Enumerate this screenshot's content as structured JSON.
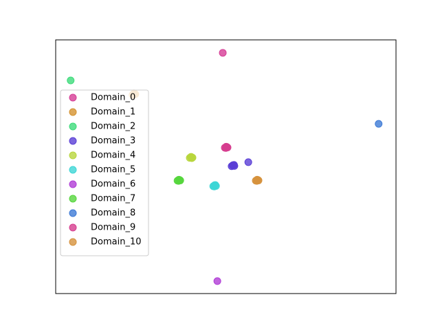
{
  "chart_data": {
    "type": "scatter",
    "xlim": [
      0,
      100
    ],
    "ylim": [
      0,
      100
    ],
    "legend": "center left",
    "series": [
      {
        "name": "Domain_0",
        "color": "#d63d96",
        "x": [
          49.1
        ],
        "y": [
          94.9
        ]
      },
      {
        "name": "Domain_1",
        "color": "#d4922f",
        "x": [
          22.6,
          23.0,
          23.4,
          22.9,
          23.2
        ],
        "y": [
          78.3,
          78.9,
          78.6,
          78.4,
          78.8
        ]
      },
      {
        "name": "Domain_2",
        "color": "#3ddb7a",
        "x": [
          4.4
        ],
        "y": [
          84.0
        ]
      },
      {
        "name": "Domain_3",
        "color": "#5a3fd6",
        "x": [
          51.7,
          52.1,
          52.5,
          52.0,
          52.4,
          56.6
        ],
        "y": [
          50.2,
          50.6,
          50.3,
          50.5,
          50.7,
          51.8
        ]
      },
      {
        "name": "Domain_4",
        "color": "#b8d63d",
        "x": [
          39.4,
          39.8,
          40.2,
          39.7,
          40.0
        ],
        "y": [
          53.5,
          53.9,
          53.6,
          53.8,
          53.4
        ]
      },
      {
        "name": "Domain_5",
        "color": "#3dd6d6",
        "x": [
          46.3,
          46.7,
          47.1,
          46.6,
          46.9
        ],
        "y": [
          42.3,
          42.7,
          42.4,
          42.2,
          42.8
        ]
      },
      {
        "name": "Domain_6",
        "color": "#b03dd6",
        "x": [
          47.5
        ],
        "y": [
          4.9
        ]
      },
      {
        "name": "Domain_7",
        "color": "#56d63d",
        "x": [
          35.8,
          36.2,
          36.6,
          36.1,
          36.4
        ],
        "y": [
          44.5,
          44.9,
          44.6,
          44.4,
          44.8
        ]
      },
      {
        "name": "Domain_8",
        "color": "#3d7ad6",
        "x": [
          94.9
        ],
        "y": [
          66.9
        ]
      },
      {
        "name": "Domain_9",
        "color": "#d63d8f",
        "x": [
          49.7,
          50.1,
          50.5,
          50.0,
          50.3
        ],
        "y": [
          57.5,
          57.9,
          57.6,
          57.4,
          57.8
        ]
      },
      {
        "name": "Domain_10",
        "color": "#d6923d",
        "x": [
          58.8,
          59.2,
          59.6,
          59.1,
          59.4
        ],
        "y": [
          44.5,
          44.9,
          44.6,
          44.4,
          44.8
        ]
      }
    ]
  }
}
